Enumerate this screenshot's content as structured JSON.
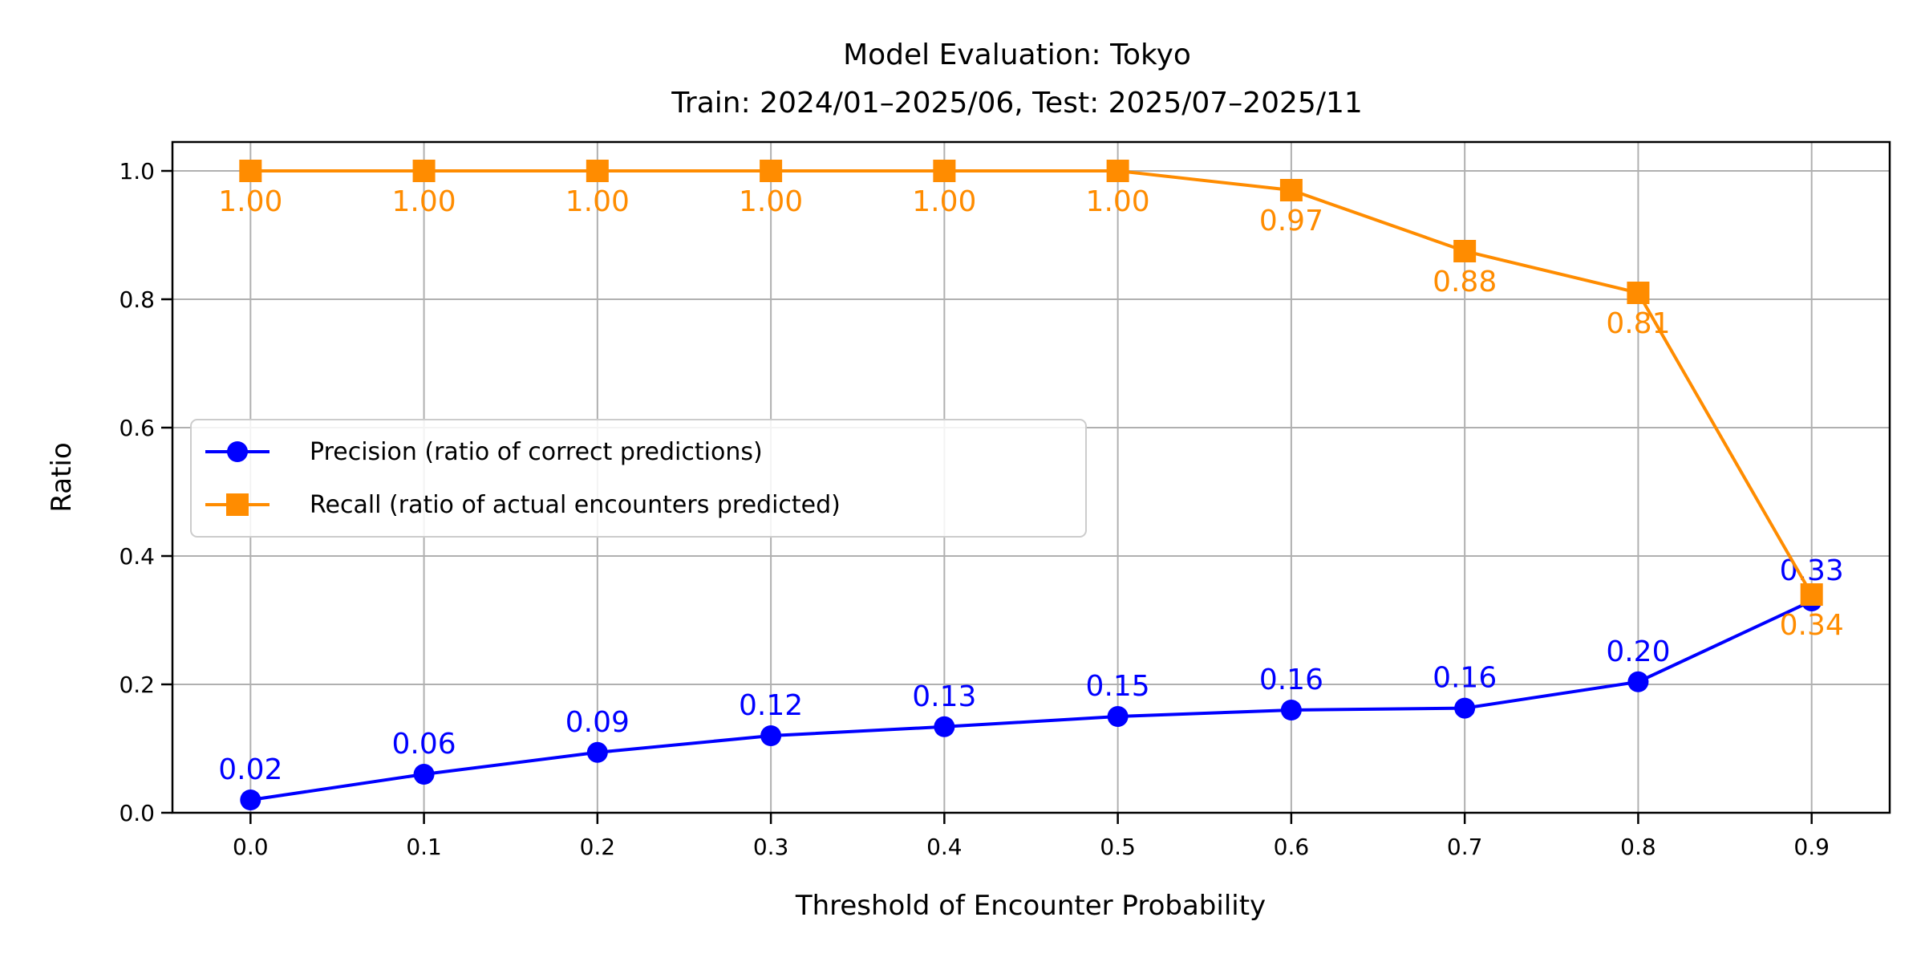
{
  "chart_data": {
    "type": "line",
    "title": "Model Evaluation: Tokyo",
    "subtitle": "Train: 2024/01–2025/06, Test: 2025/07–2025/11",
    "xlabel": "Threshold of Encounter Probability",
    "ylabel": "Ratio",
    "xlim": [
      -0.045,
      0.945
    ],
    "ylim": [
      0,
      1.045
    ],
    "xticks": [
      "0.0",
      "0.1",
      "0.2",
      "0.3",
      "0.4",
      "0.5",
      "0.6",
      "0.7",
      "0.8",
      "0.9"
    ],
    "yticks": [
      "0.0",
      "0.2",
      "0.4",
      "0.6",
      "0.8",
      "1.0"
    ],
    "grid": true,
    "legend_placement": "center-left",
    "x": [
      0.0,
      0.1,
      0.2,
      0.3,
      0.4,
      0.5,
      0.6,
      0.7,
      0.8,
      0.9
    ],
    "series": [
      {
        "name": "Precision (ratio of correct predictions)",
        "color": "#0000ff",
        "marker": "circle",
        "values": [
          0.02,
          0.06,
          0.094,
          0.12,
          0.134,
          0.15,
          0.16,
          0.163,
          0.204,
          0.33
        ],
        "labels": [
          "0.02",
          "0.06",
          "0.09",
          "0.12",
          "0.13",
          "0.15",
          "0.16",
          "0.16",
          "0.20",
          "0.33"
        ],
        "label_position": "above"
      },
      {
        "name": "Recall (ratio of actual encounters predicted)",
        "color": "#ff8c00",
        "marker": "square",
        "values": [
          1.0,
          1.0,
          1.0,
          1.0,
          1.0,
          1.0,
          0.97,
          0.875,
          0.81,
          0.34
        ],
        "labels": [
          "1.00",
          "1.00",
          "1.00",
          "1.00",
          "1.00",
          "1.00",
          "0.97",
          "0.88",
          "0.81",
          "0.34"
        ],
        "label_position": "below"
      }
    ]
  }
}
